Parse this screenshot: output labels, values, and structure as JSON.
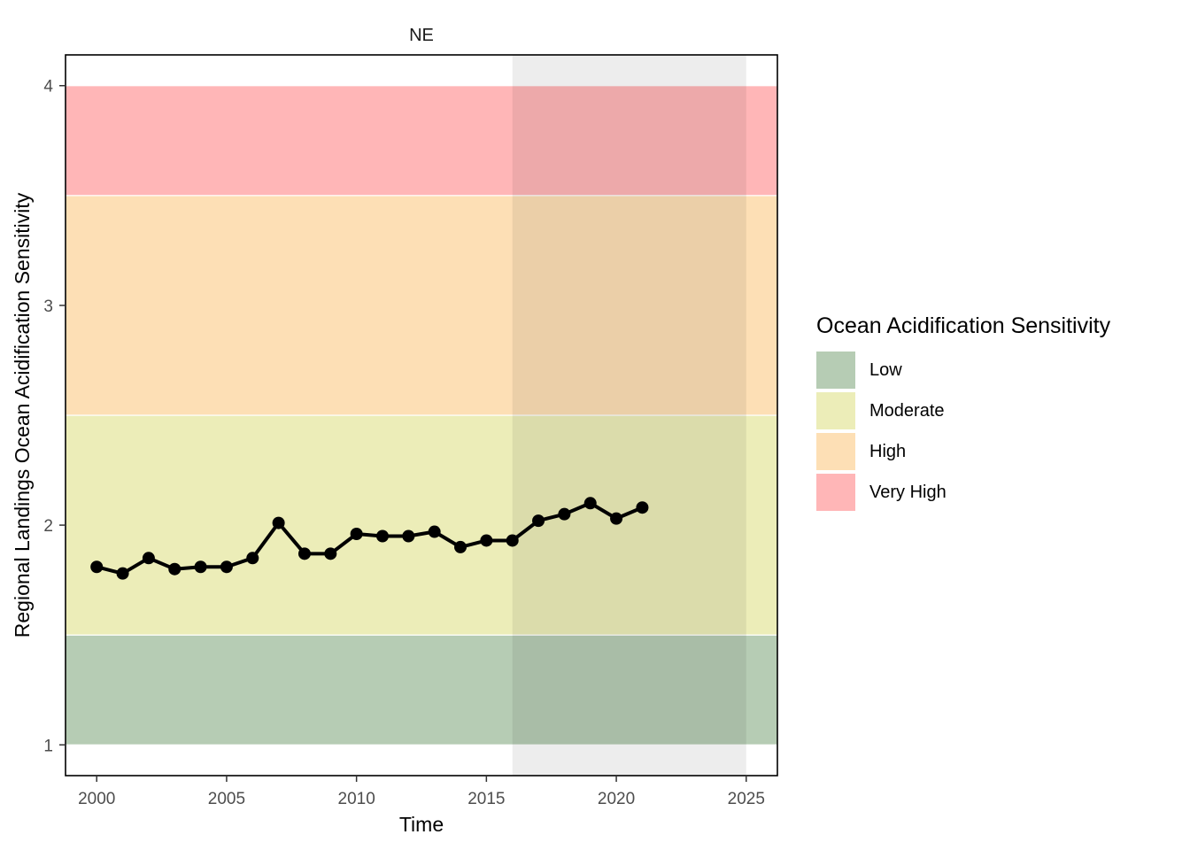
{
  "chart_data": {
    "type": "line",
    "title": "",
    "facet_label": "NE",
    "xlabel": "Time",
    "ylabel": "Regional Landings Ocean Acidification Sensitivity",
    "xlim": [
      1998.8,
      2026.2
    ],
    "ylim": [
      0.86,
      4.14
    ],
    "x_ticks": [
      2000,
      2005,
      2010,
      2015,
      2020,
      2025
    ],
    "y_ticks": [
      1,
      2,
      3,
      4
    ],
    "grid": false,
    "legend_position": "right",
    "highlight_window": {
      "x_start": 2016,
      "x_end": 2025,
      "color": "#e6e6e6"
    },
    "bands": [
      {
        "label": "Low",
        "y_start": 1.0,
        "y_end": 1.5,
        "color": "#b6ccb4"
      },
      {
        "label": "Moderate",
        "y_start": 1.5,
        "y_end": 2.5,
        "color": "#ecedb8"
      },
      {
        "label": "High",
        "y_start": 2.5,
        "y_end": 3.5,
        "color": "#fddfb5"
      },
      {
        "label": "Very High",
        "y_start": 3.5,
        "y_end": 4.0,
        "color": "#ffb6b7"
      }
    ],
    "series": [
      {
        "x": [
          2000,
          2001,
          2002,
          2003,
          2004,
          2005,
          2006,
          2007,
          2008,
          2009,
          2010,
          2011,
          2012,
          2013,
          2014,
          2015,
          2016,
          2017,
          2018,
          2019,
          2020,
          2021
        ],
        "y": [
          1.81,
          1.78,
          1.85,
          1.8,
          1.81,
          1.81,
          1.85,
          2.01,
          1.87,
          1.87,
          1.96,
          1.95,
          1.95,
          1.97,
          1.9,
          1.93,
          1.93,
          2.02,
          2.05,
          2.1,
          2.03,
          2.08
        ],
        "color": "#000000"
      }
    ]
  },
  "legend": {
    "title": "Ocean Acidification Sensitivity",
    "items": [
      {
        "label": "Low",
        "color": "#b6ccb4"
      },
      {
        "label": "Moderate",
        "color": "#ecedb8"
      },
      {
        "label": "High",
        "color": "#fddfb5"
      },
      {
        "label": "Very High",
        "color": "#ffb6b7"
      }
    ]
  }
}
